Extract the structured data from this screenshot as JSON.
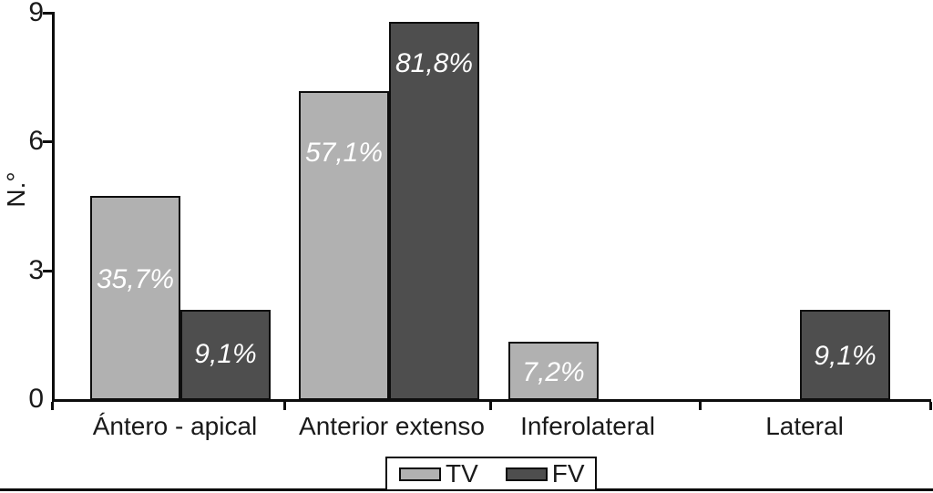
{
  "figure": {
    "background_color": "#ffffff",
    "frame_rule_color": "#000000"
  },
  "chart_data": {
    "type": "bar",
    "title": "",
    "xlabel": "",
    "ylabel": "N.°",
    "ylim": [
      0,
      9
    ],
    "yticks": [
      0,
      3,
      6,
      9
    ],
    "grid": false,
    "legend_position": "bottom-center",
    "categories": [
      "Ántero - apical",
      "Anterior extenso",
      "Inferolateral",
      "Lateral"
    ],
    "series": [
      {
        "name": "TV",
        "color": "#b1b1b1",
        "values": [
          4.75,
          7.2,
          1.35,
          0
        ],
        "labels": [
          "35,7%",
          "57,1%",
          "7,2%",
          ""
        ],
        "label_frac": [
          0.41,
          0.2,
          0.53,
          0
        ]
      },
      {
        "name": "FV",
        "color": "#4e4e4e",
        "values": [
          2.1,
          8.8,
          0,
          2.1
        ],
        "labels": [
          "9,1%",
          "81,8%",
          "",
          "9,1%"
        ],
        "label_frac": [
          0.49,
          0.11,
          0,
          0.52
        ]
      }
    ],
    "bar_label_color": "#ffffff",
    "axis_color": "#0d0d0d"
  }
}
